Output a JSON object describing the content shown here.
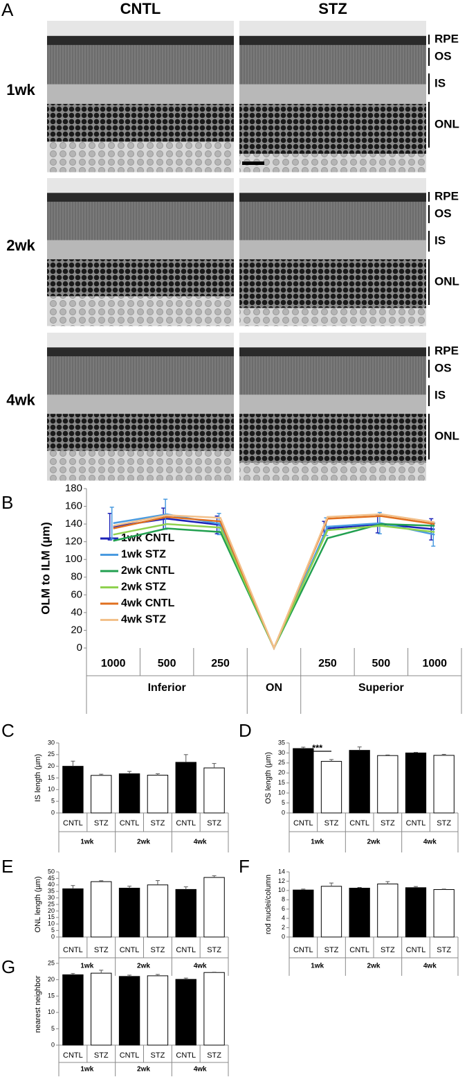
{
  "panel_a": {
    "label": "A",
    "columns": [
      "CNTL",
      "STZ"
    ],
    "rows": [
      "1wk",
      "2wk",
      "4wk"
    ],
    "layers": [
      "RPE",
      "OS",
      "IS",
      "ONL"
    ]
  },
  "chart_data": [
    {
      "type": "line",
      "panel_label": "B",
      "y_label": "OLM to ILM (µm)",
      "categories": [
        "1000",
        "500",
        "250",
        null,
        "250",
        "500",
        "1000"
      ],
      "groups": [
        "Inferior",
        "ON",
        "Superior"
      ],
      "group_index": [
        0,
        0,
        0,
        1,
        2,
        2,
        2
      ],
      "series": [
        {
          "name": "1wk CNTL",
          "color": "#1c22b8",
          "values": [
            137,
            146,
            139,
            0,
            135,
            140,
            134
          ],
          "errors": [
            15,
            12,
            10,
            null,
            8,
            10,
            12
          ]
        },
        {
          "name": "1wk STZ",
          "color": "#4a9be0",
          "values": [
            141,
            151,
            140,
            0,
            137,
            141,
            128
          ],
          "errors": [
            18,
            17,
            12,
            null,
            10,
            12,
            13
          ]
        },
        {
          "name": "2wk CNTL",
          "color": "#22a050",
          "values": [
            121,
            135,
            131,
            0,
            124,
            140,
            138
          ]
        },
        {
          "name": "2wk STZ",
          "color": "#8fd14f",
          "values": [
            128,
            140,
            136,
            0,
            133,
            138,
            131
          ]
        },
        {
          "name": "4wk CNTL",
          "color": "#e07020",
          "values": [
            135,
            148,
            143,
            0,
            146,
            149,
            140
          ]
        },
        {
          "name": "4wk STZ",
          "color": "#f2c08a",
          "values": [
            138,
            150,
            147,
            0,
            148,
            151,
            142
          ]
        }
      ],
      "ylim": [
        0,
        180
      ],
      "yticks": [
        0,
        20,
        40,
        60,
        80,
        100,
        120,
        140,
        160,
        180
      ],
      "legend": "upper-left"
    },
    {
      "type": "bar",
      "panel_label": "C",
      "y_label": "IS length (µm)",
      "categories": [
        "1wk",
        "2wk",
        "4wk"
      ],
      "series": [
        {
          "name": "CNTL",
          "color": "#000000",
          "values": [
            20,
            16.8,
            21.7
          ],
          "errors": [
            2.2,
            1,
            3.3
          ]
        },
        {
          "name": "STZ",
          "color": "#ffffff",
          "values": [
            16.1,
            16.2,
            19.3
          ],
          "errors": [
            0.5,
            0.6,
            1.9
          ]
        }
      ],
      "ylim": [
        0,
        30
      ],
      "yticks": [
        0,
        5,
        10,
        15,
        20,
        25,
        30
      ]
    },
    {
      "type": "bar",
      "panel_label": "D",
      "y_label": "OS length (µm)",
      "categories": [
        "1wk",
        "2wk",
        "4wk"
      ],
      "series": [
        {
          "name": "CNTL",
          "color": "#000000",
          "values": [
            32.2,
            31.3,
            30
          ],
          "errors": [
            0.7,
            1.7,
            0.3
          ]
        },
        {
          "name": "STZ",
          "color": "#ffffff",
          "values": [
            25.8,
            28.7,
            28.8
          ],
          "errors": [
            0.9,
            0.3,
            0.5
          ]
        }
      ],
      "ylim": [
        0,
        35
      ],
      "yticks": [
        0,
        5,
        10,
        15,
        20,
        25,
        30,
        35
      ],
      "annotation": "***"
    },
    {
      "type": "bar",
      "panel_label": "E",
      "y_label": "ONL length (µm)",
      "categories": [
        "1wk",
        "2wk",
        "4wk"
      ],
      "series": [
        {
          "name": "CNTL",
          "color": "#000000",
          "values": [
            37,
            37.5,
            36.5
          ],
          "errors": [
            2.5,
            1.5,
            2
          ]
        },
        {
          "name": "STZ",
          "color": "#ffffff",
          "values": [
            42.5,
            40,
            45.7
          ],
          "errors": [
            0.7,
            3.3,
            1.3
          ]
        }
      ],
      "ylim": [
        0,
        50
      ],
      "yticks": [
        0,
        5,
        10,
        15,
        20,
        25,
        30,
        35,
        40,
        45,
        50
      ]
    },
    {
      "type": "bar",
      "panel_label": "F",
      "y_label": "rod nuclei/column",
      "categories": [
        "1wk",
        "2wk",
        "4wk"
      ],
      "series": [
        {
          "name": "CNTL",
          "color": "#000000",
          "values": [
            10.1,
            10.5,
            10.6
          ],
          "errors": [
            0.2,
            0.15,
            0.25
          ]
        },
        {
          "name": "STZ",
          "color": "#ffffff",
          "values": [
            10.9,
            11.4,
            10.2
          ],
          "errors": [
            0.7,
            0.5,
            0.1
          ]
        }
      ],
      "ylim": [
        0,
        14
      ],
      "yticks": [
        0,
        2,
        4,
        6,
        8,
        10,
        12,
        14
      ]
    },
    {
      "type": "bar",
      "panel_label": "G",
      "y_label": "nearest neighbor",
      "categories": [
        "1wk",
        "2wk",
        "4wk"
      ],
      "series": [
        {
          "name": "CNTL",
          "color": "#000000",
          "values": [
            21.5,
            21,
            20.1
          ],
          "errors": [
            0.4,
            0.4,
            0.4
          ]
        },
        {
          "name": "STZ",
          "color": "#ffffff",
          "values": [
            22,
            21.2,
            22.2
          ],
          "errors": [
            0.9,
            0.4,
            0.1
          ]
        }
      ],
      "ylim": [
        0,
        25
      ],
      "yticks": [
        0,
        5,
        10,
        15,
        20,
        25
      ]
    }
  ]
}
